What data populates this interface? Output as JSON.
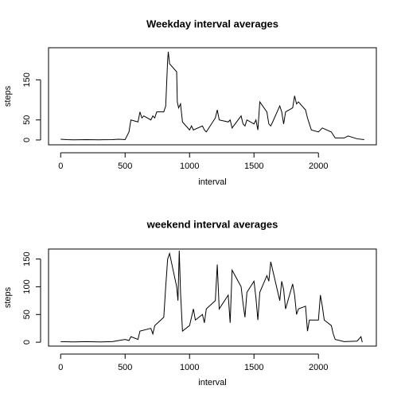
{
  "chart_data": [
    {
      "type": "line",
      "title": "Weekday interval averages",
      "x_label": "interval",
      "y_label": "steps",
      "color": "#000000",
      "x": [
        0,
        50,
        100,
        200,
        300,
        400,
        450,
        500,
        530,
        545,
        600,
        615,
        630,
        645,
        700,
        715,
        730,
        745,
        800,
        815,
        830,
        835,
        845,
        900,
        905,
        915,
        930,
        945,
        1000,
        1015,
        1030,
        1100,
        1115,
        1130,
        1200,
        1215,
        1230,
        1300,
        1315,
        1330,
        1400,
        1415,
        1430,
        1445,
        1500,
        1515,
        1530,
        1545,
        1600,
        1615,
        1630,
        1645,
        1700,
        1715,
        1730,
        1745,
        1800,
        1815,
        1830,
        1845,
        1900,
        1915,
        1930,
        1945,
        2000,
        2030,
        2100,
        2130,
        2200,
        2230,
        2300,
        2355
      ],
      "values": [
        2,
        1,
        0.5,
        1,
        0.5,
        1,
        2,
        1,
        20,
        50,
        45,
        70,
        55,
        60,
        50,
        60,
        55,
        70,
        70,
        85,
        200,
        220,
        190,
        170,
        95,
        80,
        90,
        45,
        25,
        35,
        25,
        35,
        25,
        20,
        55,
        75,
        50,
        45,
        50,
        30,
        60,
        40,
        35,
        50,
        40,
        50,
        25,
        95,
        70,
        40,
        35,
        45,
        85,
        70,
        40,
        70,
        80,
        110,
        90,
        95,
        75,
        55,
        40,
        25,
        20,
        30,
        20,
        5,
        5,
        10,
        3,
        1
      ],
      "xlim": [
        -94.2,
        2449.2
      ],
      "ylim": [
        -12,
        230
      ],
      "xticks": [
        0,
        500,
        1000,
        1500,
        2000
      ],
      "yticks": [
        0,
        50,
        150
      ]
    },
    {
      "type": "line",
      "title": "weekend interval averages",
      "x_label": "interval",
      "y_label": "steps",
      "color": "#000000",
      "x": [
        0,
        100,
        200,
        300,
        400,
        450,
        500,
        530,
        545,
        600,
        615,
        700,
        715,
        730,
        800,
        815,
        830,
        845,
        900,
        910,
        920,
        930,
        945,
        1000,
        1015,
        1030,
        1045,
        1100,
        1115,
        1130,
        1200,
        1215,
        1230,
        1300,
        1315,
        1330,
        1400,
        1415,
        1430,
        1445,
        1500,
        1515,
        1530,
        1545,
        1600,
        1615,
        1630,
        1700,
        1715,
        1730,
        1745,
        1800,
        1815,
        1830,
        1845,
        1900,
        1915,
        1930,
        2000,
        2015,
        2030,
        2045,
        2100,
        2115,
        2130,
        2200,
        2300,
        2330,
        2340
      ],
      "values": [
        1,
        0.5,
        1,
        0.5,
        1,
        3,
        5,
        3,
        10,
        5,
        20,
        25,
        15,
        30,
        45,
        100,
        150,
        160,
        100,
        75,
        165,
        90,
        20,
        30,
        45,
        60,
        40,
        50,
        35,
        60,
        75,
        140,
        60,
        85,
        35,
        130,
        100,
        70,
        45,
        90,
        110,
        80,
        40,
        90,
        120,
        110,
        145,
        75,
        110,
        95,
        60,
        105,
        85,
        50,
        60,
        65,
        20,
        40,
        40,
        85,
        65,
        40,
        30,
        15,
        5,
        1,
        2,
        10,
        0
      ],
      "xlim": [
        -94.2,
        2449.2
      ],
      "ylim": [
        -7,
        168
      ],
      "xticks": [
        0,
        500,
        1000,
        1500,
        2000
      ],
      "yticks": [
        0,
        50,
        100,
        150
      ]
    }
  ]
}
